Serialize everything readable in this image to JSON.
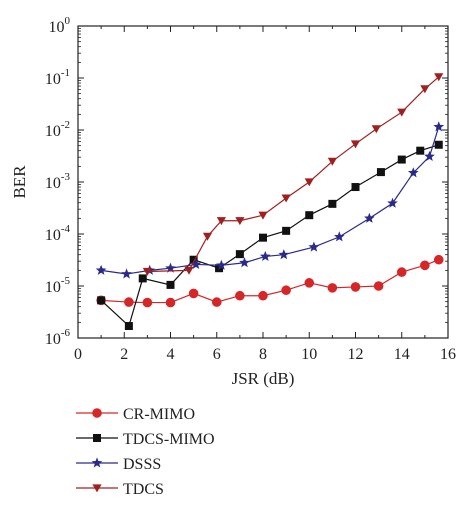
{
  "chart_data": {
    "type": "line",
    "xlabel": "JSR (dB)",
    "ylabel": "BER",
    "xlim": [
      0,
      16
    ],
    "ylim": [
      1e-06,
      1
    ],
    "yscale": "log",
    "xticks": [
      "0",
      "2",
      "4",
      "6",
      "8",
      "10",
      "12",
      "14",
      "16"
    ],
    "yticks": [
      {
        "base": "10",
        "exp": "0"
      },
      {
        "base": "10",
        "exp": "-1"
      },
      {
        "base": "10",
        "exp": "-2"
      },
      {
        "base": "10",
        "exp": "-3"
      },
      {
        "base": "10",
        "exp": "-4"
      },
      {
        "base": "10",
        "exp": "-5"
      },
      {
        "base": "10",
        "exp": "-6"
      }
    ],
    "grid": false,
    "legend_position": "below-left",
    "series": [
      {
        "name": "CR-MIMO",
        "color": "#d62728",
        "marker": "circle",
        "x": [
          1,
          2.2,
          3,
          4,
          5,
          6,
          7,
          8,
          9,
          10,
          11,
          12,
          13,
          14,
          15,
          15.6
        ],
        "y": [
          5.3e-06,
          4.9e-06,
          4.8e-06,
          4.8e-06,
          7.2e-06,
          4.9e-06,
          6.5e-06,
          6.5e-06,
          8.3e-06,
          1.15e-05,
          9.2e-06,
          9.6e-06,
          1e-05,
          1.85e-05,
          2.5e-05,
          3.2e-05
        ]
      },
      {
        "name": "TDCS-MIMO",
        "color": "#111111",
        "marker": "square",
        "x": [
          1,
          2.2,
          2.8,
          4,
          5,
          6.1,
          7,
          8,
          9,
          10,
          11,
          12,
          13.1,
          14,
          14.8,
          15.6
        ],
        "y": [
          5.3e-06,
          1.7e-06,
          1.4e-05,
          1.05e-05,
          3.2e-05,
          2.2e-05,
          4.1e-05,
          8.5e-05,
          0.000115,
          0.00023,
          0.00038,
          0.0008,
          0.00155,
          0.0027,
          0.004,
          0.0052
        ]
      },
      {
        "name": "DSSS",
        "color": "#2a2a8c",
        "marker": "star",
        "x": [
          1,
          2.1,
          3.1,
          4,
          5.1,
          6.2,
          7.2,
          8.1,
          8.9,
          10.2,
          11.3,
          12.6,
          13.6,
          14.5,
          15.2,
          15.6
        ],
        "y": [
          2e-05,
          1.7e-05,
          2e-05,
          2.2e-05,
          2.6e-05,
          2.5e-05,
          2.8e-05,
          3.7e-05,
          4e-05,
          5.6e-05,
          8.8e-05,
          0.0002,
          0.00039,
          0.0015,
          0.0031,
          0.0115
        ]
      },
      {
        "name": "TDCS",
        "color": "#a0201f",
        "marker": "triangle-down",
        "x": [
          3,
          4.8,
          5.6,
          6.2,
          7,
          8,
          9,
          10,
          11,
          12,
          12.9,
          14,
          15,
          15.6
        ],
        "y": [
          1.9e-05,
          2e-05,
          9e-05,
          0.00018,
          0.00018,
          0.00023,
          0.00049,
          0.001,
          0.0025,
          0.0054,
          0.0105,
          0.022,
          0.062,
          0.105
        ]
      }
    ]
  }
}
